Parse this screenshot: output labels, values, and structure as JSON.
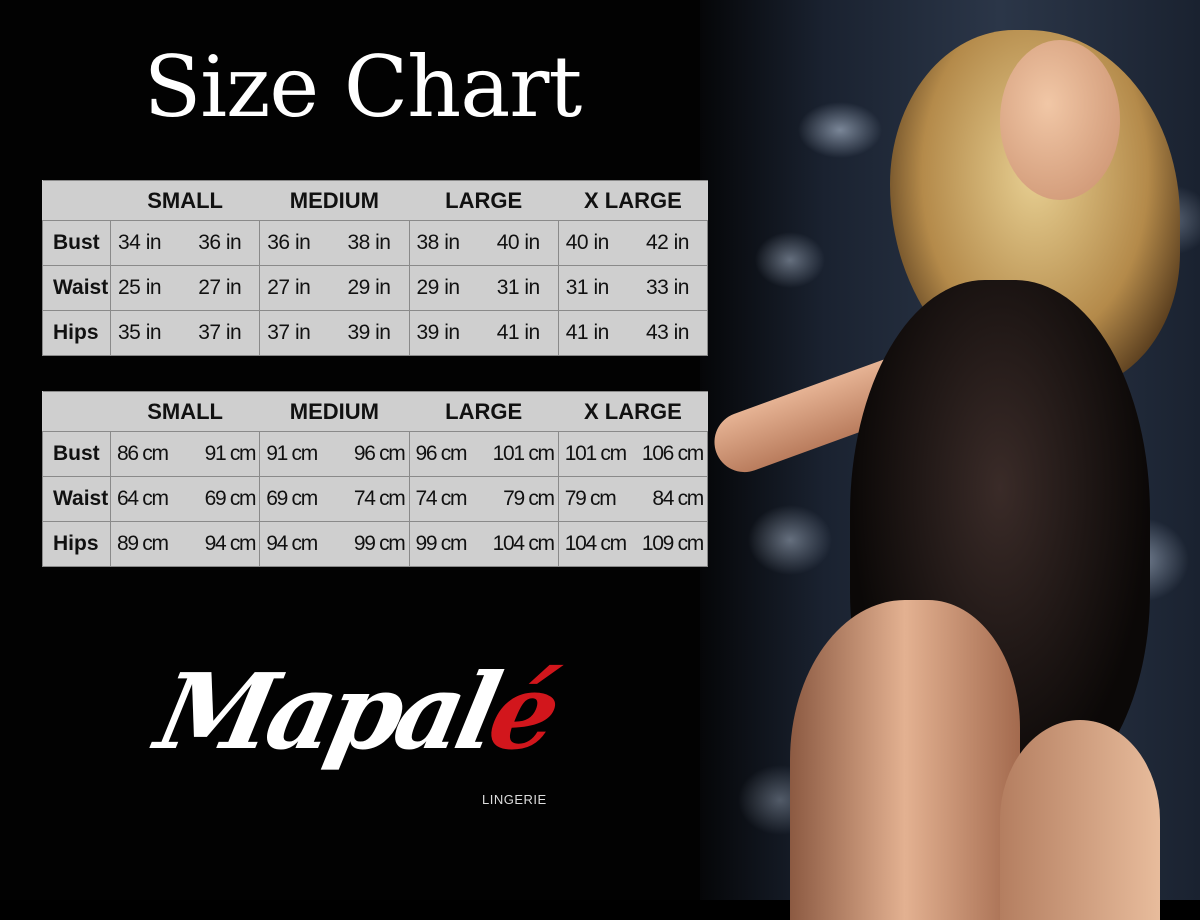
{
  "title": "Size Chart",
  "sizes": [
    "SMALL",
    "MEDIUM",
    "LARGE",
    "X LARGE"
  ],
  "inches_table": {
    "rows": [
      {
        "label": "Bust",
        "values": [
          "34 in",
          "36 in",
          "36 in",
          "38 in",
          "38 in",
          "40 in",
          "40 in",
          "42 in"
        ]
      },
      {
        "label": "Waist",
        "values": [
          "25 in",
          "27 in",
          "27 in",
          "29 in",
          "29 in",
          "31 in",
          "31 in",
          "33 in"
        ]
      },
      {
        "label": "Hips",
        "values": [
          "35 in",
          "37 in",
          "37 in",
          "39 in",
          "39 in",
          "41 in",
          "41 in",
          "43 in"
        ]
      }
    ]
  },
  "cm_table": {
    "rows": [
      {
        "label": "Bust",
        "values": [
          "86 cm",
          "91 cm",
          "91 cm",
          "96 cm",
          "96 cm",
          "101 cm",
          "101 cm",
          "106 cm"
        ]
      },
      {
        "label": "Waist",
        "values": [
          "64 cm",
          "69 cm",
          "69 cm",
          "74 cm",
          "74 cm",
          "79  cm",
          "79 cm",
          "84 cm"
        ]
      },
      {
        "label": "Hips",
        "values": [
          "89 cm",
          "94 cm",
          "94 cm",
          "99 cm",
          "99 cm",
          "104 cm",
          "104 cm",
          "109 cm"
        ]
      }
    ]
  },
  "logo": {
    "main": "Mapal",
    "accent": "é",
    "sub": "LINGERIE",
    "accent_color": "#d2161c"
  },
  "colors": {
    "background": "#000000",
    "table_bg": "#cfcfcf",
    "text": "#111111"
  }
}
